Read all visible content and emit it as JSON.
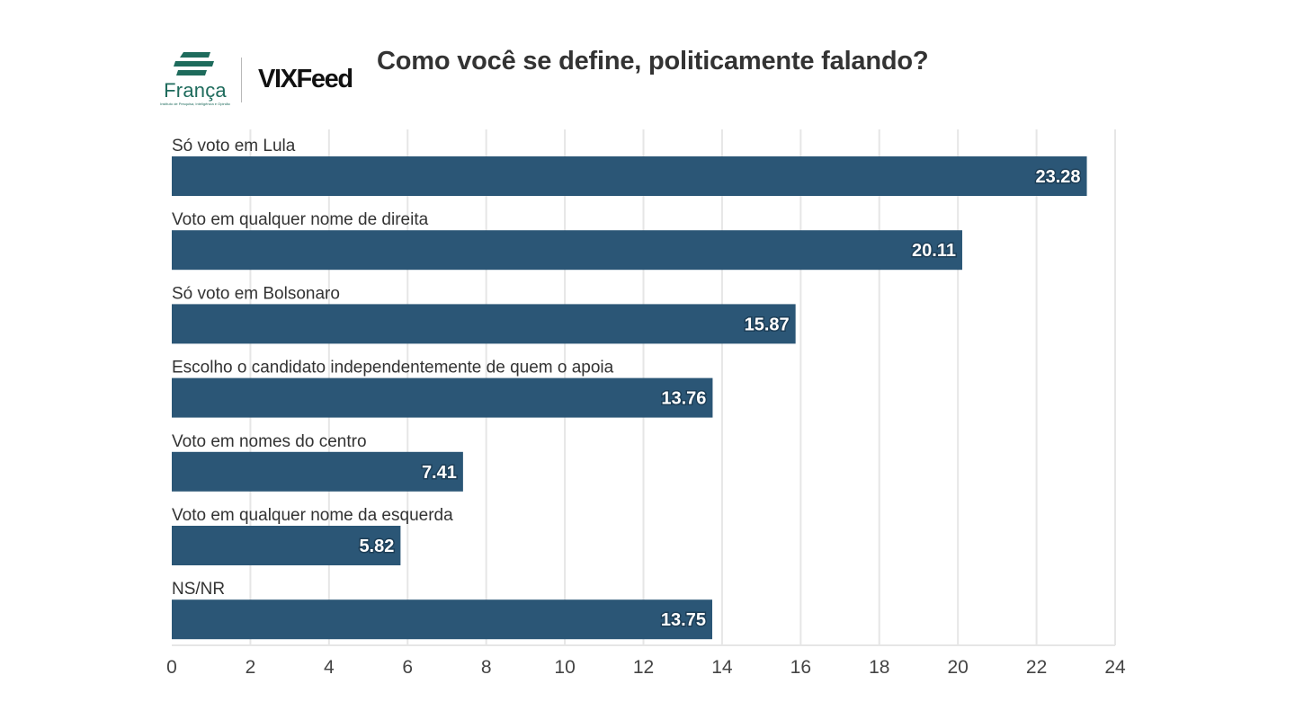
{
  "header": {
    "logo_franca": {
      "name": "França",
      "tagline": "Instituto de Pesquisa, Inteligência e Opinião",
      "color": "#1e6b5c"
    },
    "logo_vixfeed": "VIXFeed"
  },
  "chart_data": {
    "type": "bar",
    "orientation": "horizontal",
    "title": "Como você se define, politicamente falando?",
    "categories": [
      "Só voto em Lula",
      "Voto em qualquer nome de direita",
      "Só voto em Bolsonaro",
      "Escolho o candidato independentemente de quem o apoia",
      "Voto em nomes do centro",
      "Voto em qualquer nome da esquerda",
      "NS/NR"
    ],
    "values": [
      23.28,
      20.11,
      15.87,
      13.76,
      7.41,
      5.82,
      13.75
    ],
    "value_labels": [
      "23.28",
      "20.11",
      "15.87",
      "13.76",
      "7.41",
      "5.82",
      "13.75"
    ],
    "xlim": [
      0,
      24
    ],
    "xticks": [
      0,
      2,
      4,
      6,
      8,
      10,
      12,
      14,
      16,
      18,
      20,
      22,
      24
    ],
    "xlabel": "",
    "ylabel": "",
    "grid": true,
    "legend": "none",
    "bar_color": "#2b5676"
  }
}
